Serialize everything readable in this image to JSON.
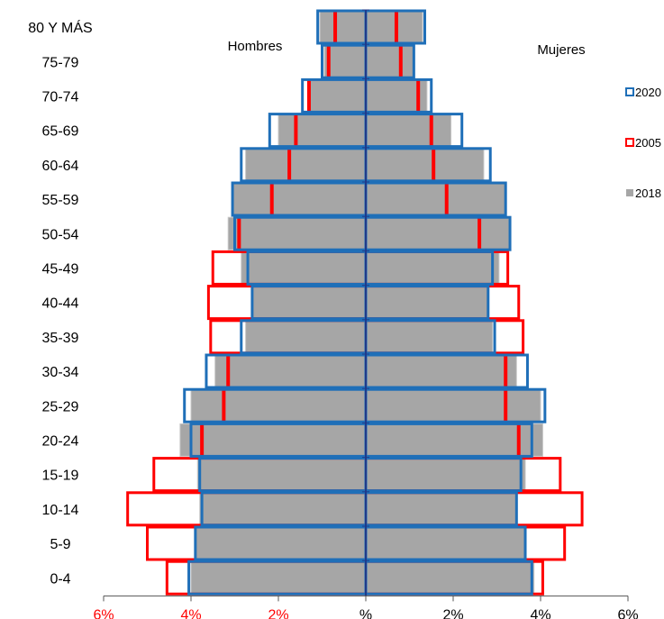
{
  "chart_data": {
    "type": "bar",
    "orientation": "horizontal-population-pyramid",
    "categories": [
      "80 Y MÁS",
      "75-79",
      "70-74",
      "65-69",
      "60-64",
      "55-59",
      "50-54",
      "45-49",
      "40-44",
      "35-39",
      "30-34",
      "25-29",
      "20-24",
      "15-19",
      "10-14",
      "5-9",
      "0-4"
    ],
    "left_label": "Hombres",
    "right_label": "Mujeres",
    "xlim": [
      -6,
      6
    ],
    "x_ticks": [
      -6,
      -4,
      -2,
      0,
      2,
      4,
      6
    ],
    "x_tick_labels": [
      "6%",
      "4%",
      "2%",
      "%",
      "2%",
      "4%",
      "6%"
    ],
    "x_tick_colors": [
      "#ff0000",
      "#ff0000",
      "#ff0000",
      "#000000",
      "#000000",
      "#000000",
      "#000000"
    ],
    "legend_position": "right",
    "series": [
      {
        "name": "2020",
        "style": "outline",
        "color": "#1f6fb8",
        "hombres": [
          1.1,
          1.0,
          1.45,
          2.2,
          2.85,
          3.05,
          3.0,
          2.7,
          2.6,
          2.85,
          3.65,
          4.15,
          4.0,
          3.8,
          3.75,
          3.9,
          4.05
        ],
        "mujeres": [
          1.35,
          1.1,
          1.5,
          2.2,
          2.85,
          3.2,
          3.3,
          2.9,
          2.8,
          2.95,
          3.7,
          4.1,
          3.8,
          3.55,
          3.45,
          3.65,
          3.8
        ]
      },
      {
        "name": "2005",
        "style": "marker-outline",
        "color": "#ff0000",
        "hombres": [
          0.7,
          0.85,
          1.3,
          1.6,
          1.75,
          2.15,
          2.9,
          3.5,
          3.6,
          3.55,
          3.15,
          3.25,
          3.75,
          4.85,
          5.45,
          5.0,
          4.55
        ],
        "mujeres": [
          0.7,
          0.8,
          1.2,
          1.5,
          1.55,
          1.85,
          2.6,
          3.25,
          3.5,
          3.6,
          3.2,
          3.2,
          3.5,
          4.45,
          4.95,
          4.55,
          4.05
        ]
      },
      {
        "name": "2018",
        "style": "fill",
        "color": "#a6a6a6",
        "hombres": [
          1.05,
          0.95,
          1.3,
          2.0,
          2.75,
          3.05,
          3.15,
          2.85,
          2.6,
          2.75,
          3.45,
          4.0,
          4.25,
          3.85,
          3.8,
          3.9,
          4.0
        ],
        "mujeres": [
          1.3,
          1.1,
          1.4,
          1.95,
          2.7,
          3.2,
          3.3,
          3.05,
          2.8,
          2.9,
          3.45,
          4.0,
          4.05,
          3.65,
          3.45,
          3.65,
          3.85
        ]
      }
    ]
  }
}
